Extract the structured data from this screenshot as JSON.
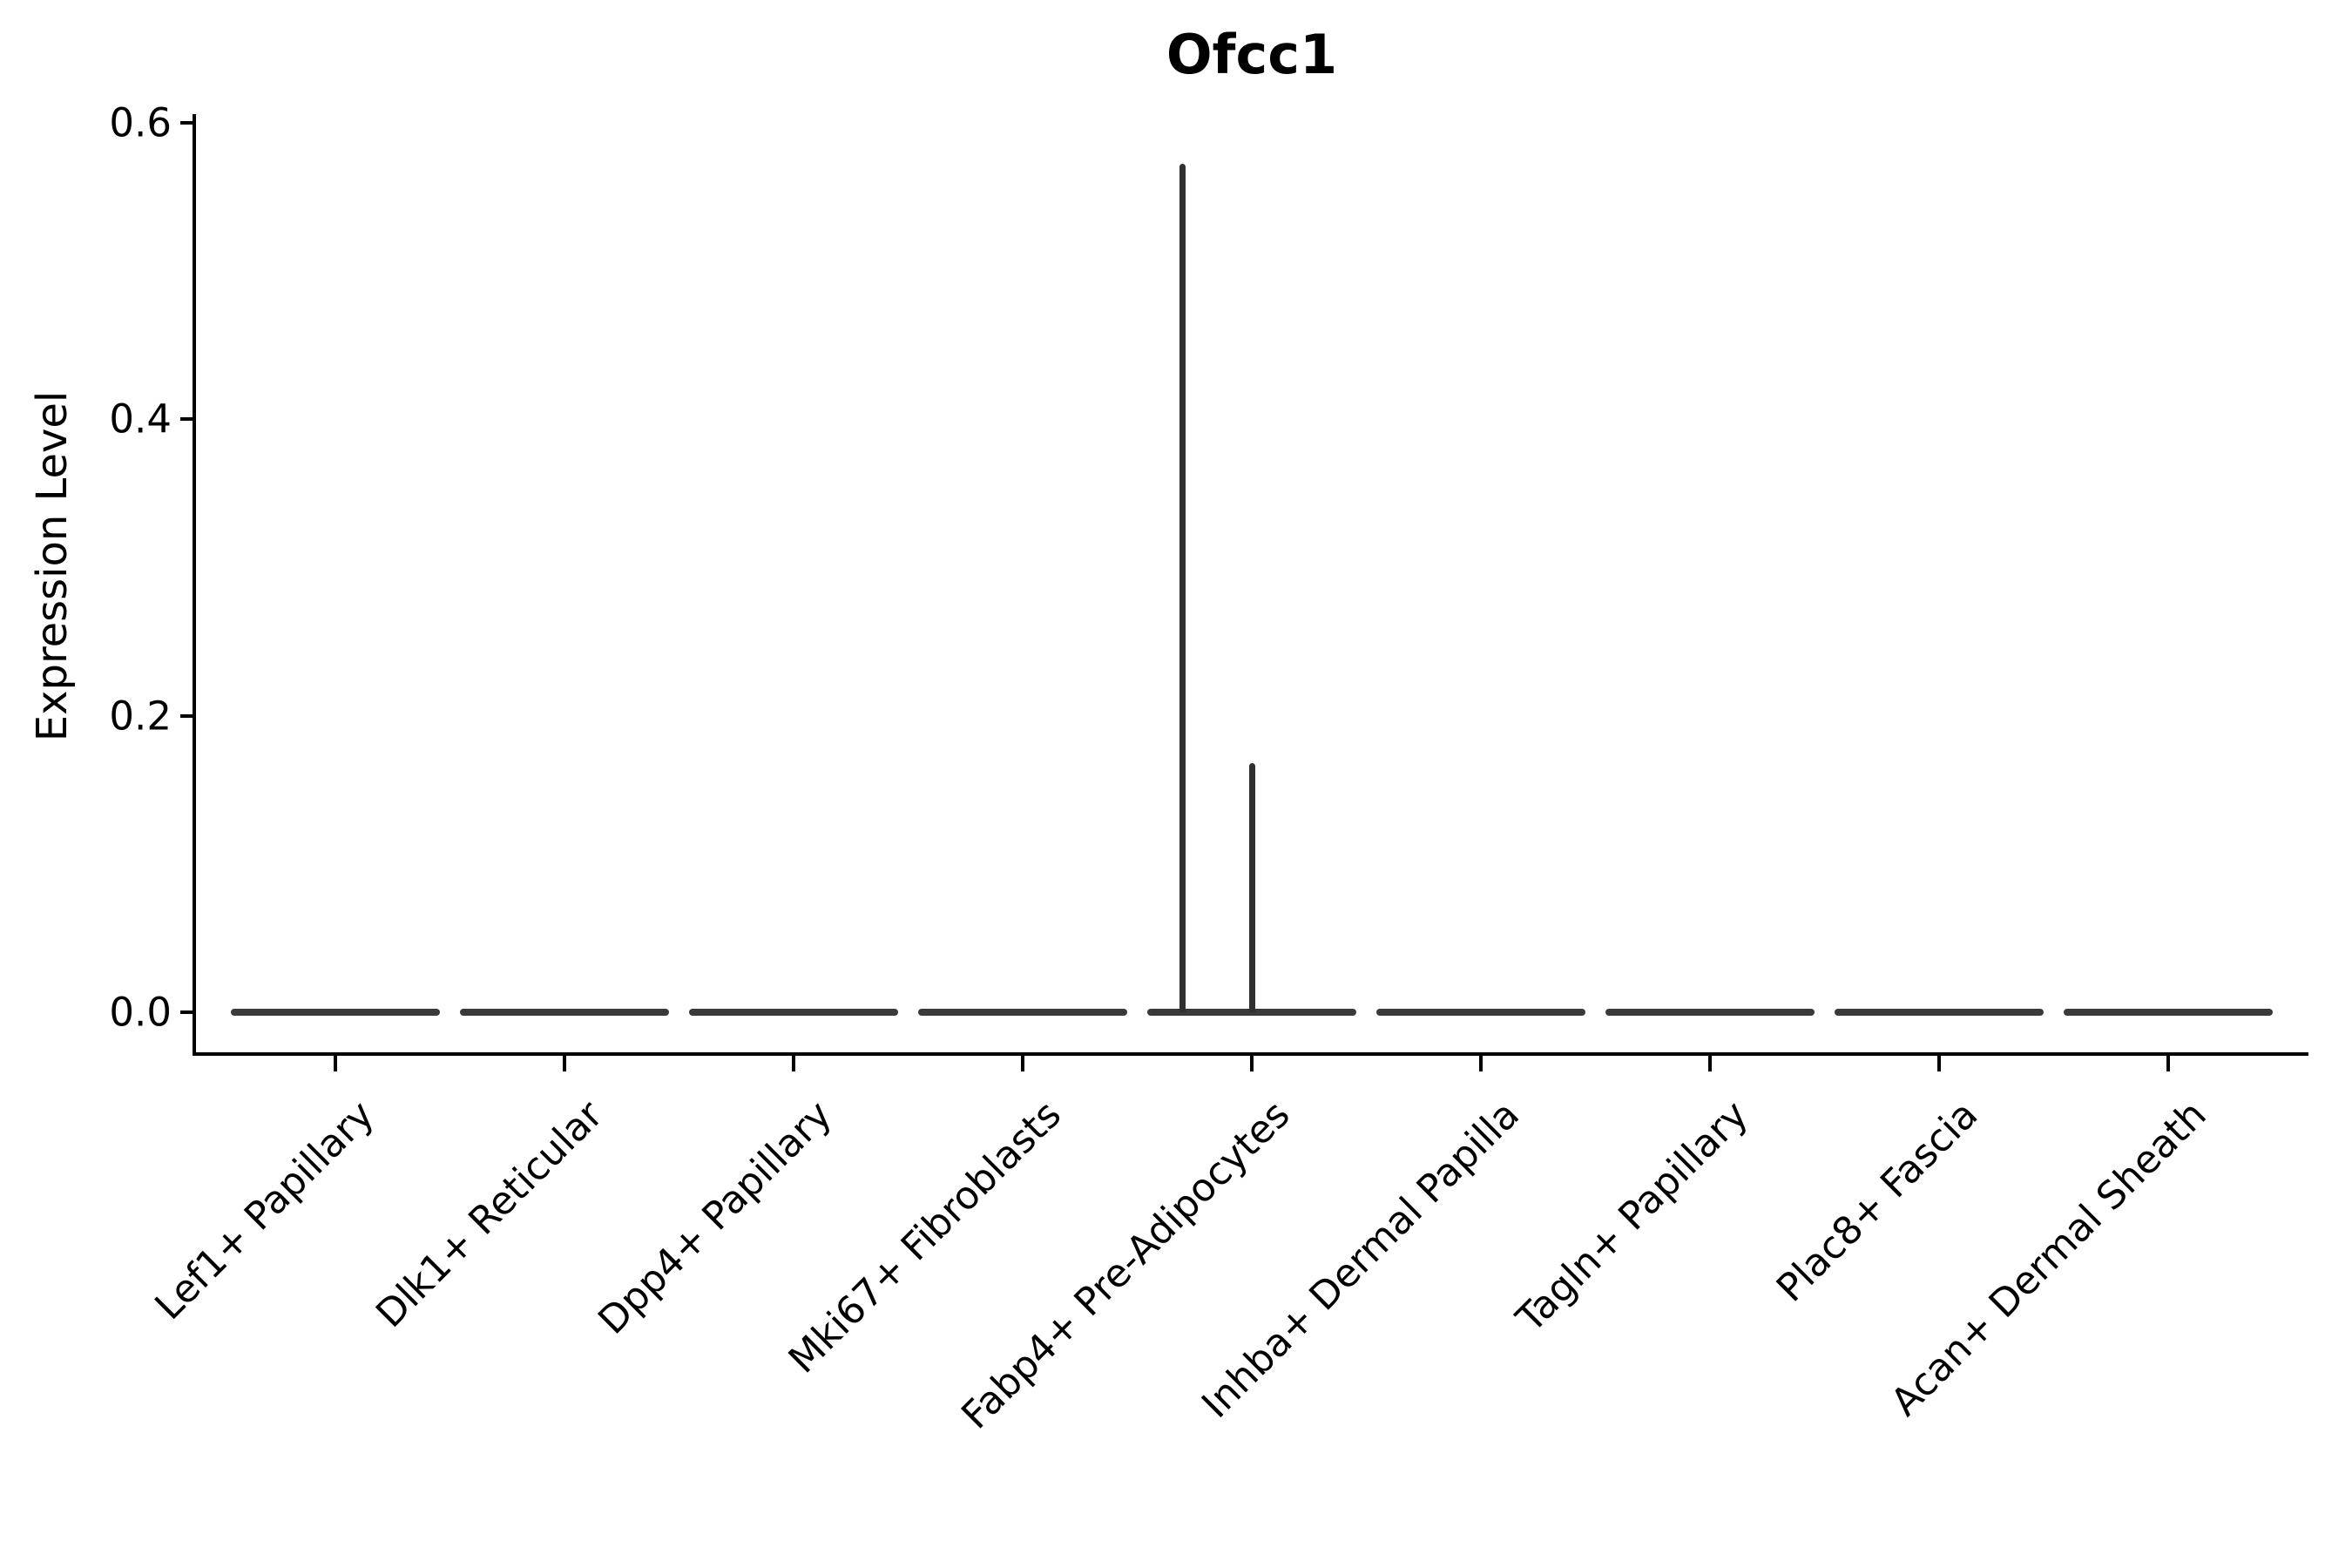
{
  "chart_data": {
    "type": "violin",
    "title": "Ofcc1",
    "xlabel": "",
    "ylabel": "Expression Level",
    "ylim": [
      0,
      0.6
    ],
    "yticks": [
      0.6,
      0.4,
      0.2,
      0.0
    ],
    "ytick_labels": [
      "0.6",
      "0.4",
      "0.2",
      "0.0"
    ],
    "grid": false,
    "legend": null,
    "colors": {
      "violin_fill": "#3a3a3a",
      "spike_stroke": "#303030",
      "axis": "#000000",
      "text": "#000000",
      "background": "#ffffff"
    },
    "categories": [
      "Lef1+ Papillary",
      "Dlk1+ Reticular",
      "Dpp4+ Papillary",
      "Mki67+ Fibroblasts",
      "Fabp4+ Pre-Adipocytes",
      "Inhba+ Dermal Papilla",
      "Tagln+ Papillary",
      "Plac8+ Fascia",
      "Acan+ Dermal Sheath"
    ],
    "max_expression_per_category": [
      0,
      0,
      0,
      0,
      0.57,
      0,
      0,
      0,
      0
    ],
    "violins": [
      {
        "category": "Lef1+ Papillary",
        "baseline_value": 0.0,
        "half_width_frac": 0.456,
        "spikes": []
      },
      {
        "category": "Dlk1+ Reticular",
        "baseline_value": 0.0,
        "half_width_frac": 0.456,
        "spikes": []
      },
      {
        "category": "Dpp4+ Papillary",
        "baseline_value": 0.0,
        "half_width_frac": 0.456,
        "spikes": []
      },
      {
        "category": "Mki67+ Fibroblasts",
        "baseline_value": 0.0,
        "half_width_frac": 0.456,
        "spikes": []
      },
      {
        "category": "Fabp4+ Pre-Adipocytes",
        "baseline_value": 0.0,
        "half_width_frac": 0.456,
        "spikes": [
          {
            "x_offset_frac": -0.304,
            "value": 0.572
          },
          {
            "x_offset_frac": 0.0,
            "value": 0.168
          }
        ]
      },
      {
        "category": "Inhba+ Dermal Papilla",
        "baseline_value": 0.0,
        "half_width_frac": 0.456,
        "spikes": []
      },
      {
        "category": "Tagln+ Papillary",
        "baseline_value": 0.0,
        "half_width_frac": 0.456,
        "spikes": []
      },
      {
        "category": "Plac8+ Fascia",
        "baseline_value": 0.0,
        "half_width_frac": 0.456,
        "spikes": []
      },
      {
        "category": "Acan+ Dermal Sheath",
        "baseline_value": 0.0,
        "half_width_frac": 0.456,
        "spikes": []
      }
    ]
  }
}
